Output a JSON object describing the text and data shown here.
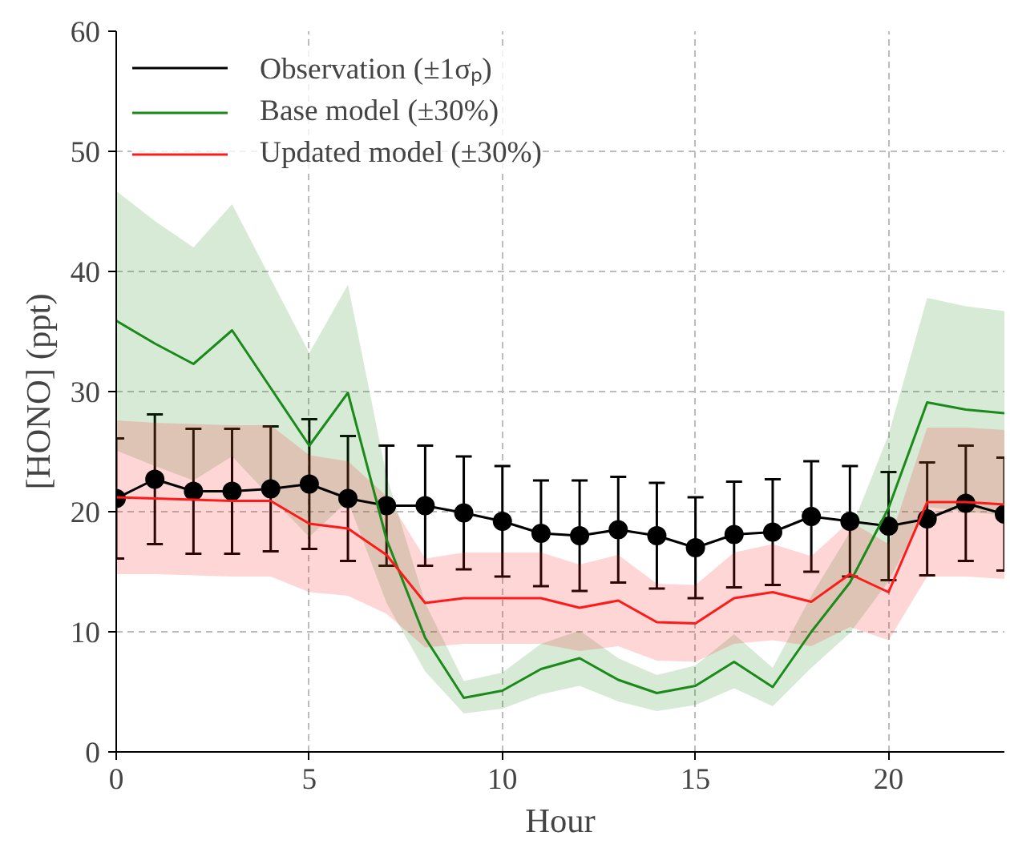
{
  "chart_data": {
    "type": "line",
    "xlabel": "Hour",
    "ylabel": "[HONO] (ppt)",
    "x": [
      0,
      1,
      2,
      3,
      4,
      5,
      6,
      7,
      8,
      9,
      10,
      11,
      12,
      13,
      14,
      15,
      16,
      17,
      18,
      19,
      20,
      21,
      22,
      23
    ],
    "xlim": [
      0,
      23
    ],
    "ylim": [
      0,
      60
    ],
    "xticks": [
      0,
      5,
      10,
      15,
      20
    ],
    "yticks": [
      0,
      10,
      20,
      30,
      40,
      50,
      60
    ],
    "grid": true,
    "legend": "top left",
    "line_style": "solid",
    "series": [
      {
        "name": "Observation (±1σₚ)",
        "color": "#000000",
        "marker": "circle",
        "values": [
          21.1,
          22.7,
          21.7,
          21.7,
          21.9,
          22.3,
          21.1,
          20.5,
          20.5,
          19.9,
          19.2,
          18.2,
          18.0,
          18.5,
          18.0,
          17.0,
          18.1,
          18.3,
          19.6,
          19.2,
          18.8,
          19.4,
          20.7,
          19.8
        ],
        "errors": [
          5.0,
          5.4,
          5.2,
          5.2,
          5.2,
          5.4,
          5.2,
          5.0,
          5.0,
          4.7,
          4.6,
          4.4,
          4.6,
          4.4,
          4.4,
          4.2,
          4.4,
          4.4,
          4.6,
          4.6,
          4.5,
          4.7,
          4.8,
          4.7
        ]
      },
      {
        "name": "Base model (±30%)",
        "color": "#1a8a1a",
        "marker": "none",
        "values": [
          35.9,
          34.0,
          32.3,
          35.1,
          30.3,
          25.5,
          29.9,
          17.7,
          9.5,
          4.5,
          5.1,
          6.9,
          7.8,
          6.0,
          4.9,
          5.5,
          7.5,
          5.4,
          10.0,
          14.1,
          20.3,
          29.1,
          28.5,
          28.2
        ],
        "lower": [
          25.1,
          23.8,
          22.6,
          24.6,
          21.2,
          17.9,
          20.9,
          12.4,
          6.7,
          3.2,
          3.6,
          4.8,
          5.5,
          4.2,
          3.4,
          3.9,
          5.3,
          3.8,
          7.0,
          9.9,
          14.2,
          20.4,
          20.0,
          19.7
        ],
        "upper": [
          46.7,
          44.2,
          42.0,
          45.6,
          39.4,
          33.2,
          38.9,
          23.0,
          12.4,
          5.9,
          6.6,
          9.0,
          10.1,
          7.8,
          6.4,
          7.2,
          9.8,
          7.0,
          13.0,
          18.3,
          26.4,
          37.8,
          37.1,
          36.7
        ]
      },
      {
        "name": "Updated model (±30%)",
        "color": "#ff1a1a",
        "marker": "none",
        "values": [
          21.2,
          21.1,
          21.0,
          20.9,
          20.9,
          19.0,
          18.6,
          16.4,
          12.4,
          12.8,
          12.8,
          12.8,
          12.0,
          12.6,
          10.8,
          10.7,
          12.8,
          13.3,
          12.5,
          14.8,
          13.3,
          20.8,
          20.8,
          20.6
        ],
        "lower": [
          14.8,
          14.8,
          14.7,
          14.6,
          14.6,
          13.3,
          13.0,
          11.5,
          8.7,
          9.0,
          9.0,
          9.0,
          8.4,
          8.8,
          7.6,
          7.5,
          9.0,
          9.3,
          8.8,
          10.4,
          9.3,
          14.6,
          14.6,
          14.4
        ],
        "upper": [
          27.6,
          27.4,
          27.3,
          27.2,
          27.2,
          24.7,
          24.2,
          21.3,
          16.1,
          16.6,
          16.6,
          16.6,
          15.6,
          16.4,
          14.0,
          13.9,
          16.6,
          17.3,
          16.3,
          19.2,
          17.3,
          27.0,
          27.0,
          26.8
        ]
      }
    ]
  }
}
